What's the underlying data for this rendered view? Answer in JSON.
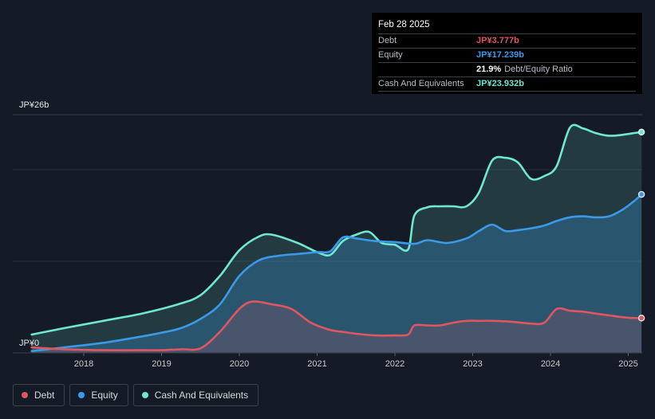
{
  "tooltip": {
    "date": "Feb 28 2025",
    "rows": [
      {
        "label": "Debt",
        "value": "JP¥3.777b",
        "color": "#e05660"
      },
      {
        "label": "Equity",
        "value": "JP¥17.239b",
        "color": "#3a9ae8"
      }
    ],
    "ratio_pct": "21.9%",
    "ratio_label": "Debt/Equity Ratio",
    "cash": {
      "label": "Cash And Equivalents",
      "value": "JP¥23.932b",
      "color": "#6fe8d0"
    }
  },
  "legend": [
    {
      "label": "Debt",
      "color": "#e05660"
    },
    {
      "label": "Equity",
      "color": "#3a9ae8"
    },
    {
      "label": "Cash And Equivalents",
      "color": "#6fe8d0"
    }
  ],
  "chart_data": {
    "type": "area",
    "y_top_label": "JP¥26b",
    "y_bottom_label": "JP¥0",
    "ylim": [
      0,
      26
    ],
    "xlim": [
      2017.3,
      2025.17
    ],
    "x_ticks": [
      2018,
      2019,
      2020,
      2021,
      2022,
      2023,
      2024,
      2025
    ],
    "x_tick_labels": [
      "2018",
      "2019",
      "2020",
      "2021",
      "2022",
      "2023",
      "2024",
      "2025"
    ],
    "series": [
      {
        "name": "Cash And Equivalents",
        "color": "#6fe8d0",
        "x": [
          2017.33,
          2017.75,
          2018.25,
          2018.75,
          2019.25,
          2019.5,
          2019.75,
          2020.0,
          2020.25,
          2020.42,
          2020.75,
          2021.0,
          2021.17,
          2021.33,
          2021.5,
          2021.67,
          2021.83,
          2022.0,
          2022.17,
          2022.25,
          2022.42,
          2022.58,
          2022.75,
          2022.92,
          2023.08,
          2023.25,
          2023.42,
          2023.58,
          2023.75,
          2023.92,
          2024.08,
          2024.25,
          2024.42,
          2024.58,
          2024.75,
          2024.92,
          2025.08,
          2025.17
        ],
        "values": [
          2.0,
          2.7,
          3.5,
          4.3,
          5.4,
          6.3,
          8.4,
          11.2,
          12.7,
          12.9,
          12.0,
          11.0,
          10.7,
          12.2,
          12.9,
          13.2,
          12.0,
          11.8,
          11.3,
          15.0,
          15.9,
          16.0,
          16.0,
          16.0,
          17.5,
          21.0,
          21.3,
          20.8,
          19.0,
          19.3,
          20.4,
          24.6,
          24.5,
          24.0,
          23.7,
          23.8,
          24.0,
          24.1
        ]
      },
      {
        "name": "Equity",
        "color": "#3a9ae8",
        "x": [
          2017.33,
          2017.75,
          2018.25,
          2018.75,
          2019.0,
          2019.25,
          2019.5,
          2019.75,
          2020.0,
          2020.25,
          2020.5,
          2020.75,
          2021.0,
          2021.17,
          2021.33,
          2021.5,
          2021.75,
          2022.0,
          2022.25,
          2022.42,
          2022.67,
          2022.92,
          2023.08,
          2023.25,
          2023.42,
          2023.58,
          2023.75,
          2023.92,
          2024.08,
          2024.25,
          2024.42,
          2024.58,
          2024.75,
          2024.92,
          2025.08,
          2025.17
        ],
        "values": [
          0.2,
          0.6,
          1.1,
          1.8,
          2.2,
          2.7,
          3.7,
          5.3,
          8.4,
          10.1,
          10.6,
          10.8,
          11.0,
          11.1,
          12.6,
          12.5,
          12.2,
          12.1,
          11.9,
          12.3,
          12.0,
          12.5,
          13.3,
          14.0,
          13.3,
          13.4,
          13.6,
          13.9,
          14.4,
          14.8,
          14.9,
          14.8,
          14.9,
          15.6,
          16.6,
          17.3
        ]
      },
      {
        "name": "Debt",
        "color": "#e05660",
        "x": [
          2017.33,
          2017.75,
          2018.25,
          2018.75,
          2019.0,
          2019.25,
          2019.5,
          2019.75,
          2020.0,
          2020.17,
          2020.42,
          2020.67,
          2020.92,
          2021.17,
          2021.33,
          2021.5,
          2021.75,
          2022.0,
          2022.17,
          2022.25,
          2022.42,
          2022.58,
          2022.75,
          2022.92,
          2023.08,
          2023.25,
          2023.5,
          2023.75,
          2023.92,
          2024.08,
          2024.25,
          2024.42,
          2024.58,
          2024.75,
          2024.92,
          2025.08,
          2025.17
        ],
        "values": [
          0.6,
          0.4,
          0.3,
          0.3,
          0.3,
          0.4,
          0.5,
          2.3,
          4.8,
          5.6,
          5.3,
          4.8,
          3.3,
          2.5,
          2.3,
          2.1,
          1.9,
          1.9,
          2.0,
          3.0,
          3.0,
          3.0,
          3.3,
          3.5,
          3.5,
          3.5,
          3.4,
          3.2,
          3.3,
          4.8,
          4.6,
          4.5,
          4.3,
          4.1,
          3.9,
          3.8,
          3.8
        ]
      }
    ]
  }
}
